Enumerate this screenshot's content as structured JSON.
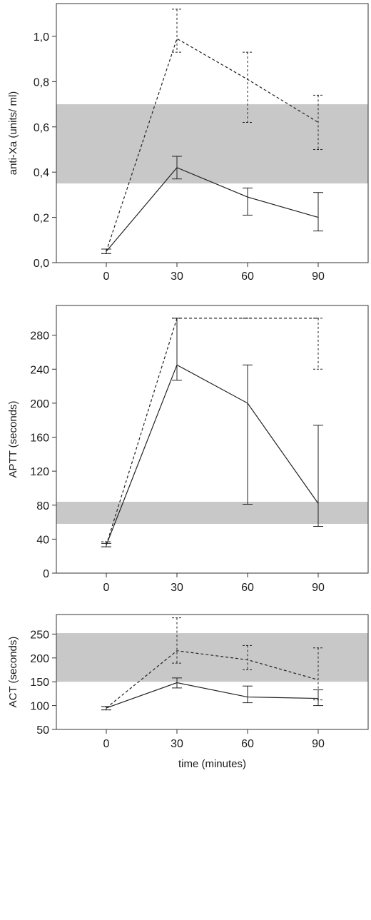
{
  "chart_data": [
    {
      "type": "line",
      "x_categories": [
        "0",
        "30",
        "60",
        "90"
      ],
      "ylabel": "anti-Xa (units/ ml)",
      "xlabel": "",
      "ylim": [
        0,
        1.1
      ],
      "yticks": [
        0.0,
        0.2,
        0.4,
        0.6,
        0.8,
        1.0
      ],
      "ytick_labels": [
        "0,0",
        "0,2",
        "0,4",
        "0,6",
        "0,8",
        "1,0"
      ],
      "reference_band": [
        0.35,
        0.7
      ],
      "series": [
        {
          "line_style": "solid",
          "values": [
            0.05,
            0.42,
            0.29,
            0.2
          ],
          "err_low": [
            0.04,
            0.37,
            0.21,
            0.14
          ],
          "err_high": [
            0.06,
            0.47,
            0.33,
            0.31
          ]
        },
        {
          "line_style": "dashed",
          "values": [
            0.05,
            0.99,
            0.81,
            0.62
          ],
          "err_low": [
            0.04,
            0.93,
            0.62,
            0.5
          ],
          "err_high": [
            0.06,
            1.12,
            0.93,
            0.74
          ]
        }
      ],
      "grid": false
    },
    {
      "type": "line",
      "x_categories": [
        "0",
        "30",
        "60",
        "90"
      ],
      "ylabel": "APTT (seconds)",
      "xlabel": "",
      "ylim": [
        0,
        300
      ],
      "yticks": [
        0,
        40,
        80,
        120,
        160,
        200,
        240,
        280
      ],
      "ytick_labels": [
        "0",
        "40",
        "80",
        "120",
        "160",
        "200",
        "240",
        "280"
      ],
      "reference_band": [
        58,
        84
      ],
      "series": [
        {
          "line_style": "solid",
          "values": [
            33,
            245,
            200,
            82
          ],
          "err_low": [
            31,
            227,
            81,
            55
          ],
          "err_high": [
            35,
            300,
            245,
            174
          ]
        },
        {
          "line_style": "dashed",
          "values": [
            33,
            300,
            300,
            300
          ],
          "err_low": [
            31,
            300,
            300,
            240
          ],
          "err_high": [
            37,
            300,
            300,
            300
          ]
        }
      ],
      "grid": false
    },
    {
      "type": "line",
      "x_categories": [
        "0",
        "30",
        "60",
        "90"
      ],
      "ylabel": "ACT (seconds)",
      "xlabel": "time (minutes)",
      "ylim": [
        50,
        290
      ],
      "yticks": [
        50,
        100,
        150,
        200,
        250
      ],
      "ytick_labels": [
        "50",
        "100",
        "150",
        "200",
        "250"
      ],
      "reference_band": [
        150,
        252
      ],
      "series": [
        {
          "line_style": "solid",
          "values": [
            95,
            148,
            118,
            115
          ],
          "err_low": [
            91,
            137,
            106,
            100
          ],
          "err_high": [
            98,
            158,
            141,
            133
          ]
        },
        {
          "line_style": "dashed",
          "values": [
            95,
            215,
            196,
            154
          ],
          "err_low": [
            91,
            189,
            175,
            112
          ],
          "err_high": [
            98,
            284,
            226,
            221
          ]
        }
      ],
      "grid": false
    }
  ]
}
